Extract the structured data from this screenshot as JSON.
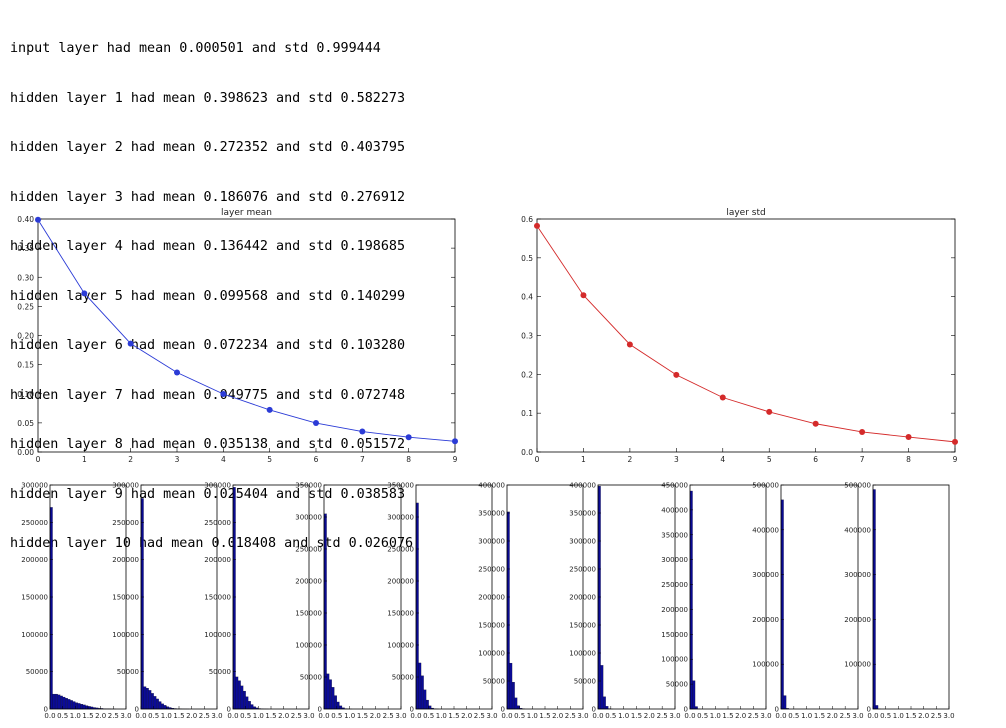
{
  "log_lines": [
    "input layer had mean 0.000501 and std 0.999444",
    "hidden layer 1 had mean 0.398623 and std 0.582273",
    "hidden layer 2 had mean 0.272352 and std 0.403795",
    "hidden layer 3 had mean 0.186076 and std 0.276912",
    "hidden layer 4 had mean 0.136442 and std 0.198685",
    "hidden layer 5 had mean 0.099568 and std 0.140299",
    "hidden layer 6 had mean 0.072234 and std 0.103280",
    "hidden layer 7 had mean 0.049775 and std 0.072748",
    "hidden layer 8 had mean 0.035138 and std 0.051572",
    "hidden layer 9 had mean 0.025404 and std 0.038583",
    "hidden layer 10 had mean 0.018408 and std 0.026076"
  ],
  "chart_data": [
    {
      "type": "line",
      "title": "layer mean",
      "color": "#2b3bd6",
      "x": [
        0,
        1,
        2,
        3,
        4,
        5,
        6,
        7,
        8,
        9
      ],
      "y": [
        0.398623,
        0.272352,
        0.186076,
        0.136442,
        0.099568,
        0.072234,
        0.049775,
        0.035138,
        0.025404,
        0.018408
      ],
      "xlim": [
        0,
        9
      ],
      "ylim": [
        0,
        0.4
      ],
      "xticks": [
        "0",
        "1",
        "2",
        "3",
        "4",
        "5",
        "6",
        "7",
        "8",
        "9"
      ],
      "yticks": [
        "0.00",
        "0.05",
        "0.10",
        "0.15",
        "0.20",
        "0.25",
        "0.30",
        "0.35",
        "0.40"
      ],
      "ytick_values": [
        0,
        0.05,
        0.1,
        0.15,
        0.2,
        0.25,
        0.3,
        0.35,
        0.4
      ]
    },
    {
      "type": "line",
      "title": "layer std",
      "color": "#d42a2a",
      "x": [
        0,
        1,
        2,
        3,
        4,
        5,
        6,
        7,
        8,
        9
      ],
      "y": [
        0.582273,
        0.403795,
        0.276912,
        0.198685,
        0.140299,
        0.10328,
        0.072748,
        0.051572,
        0.038583,
        0.026076
      ],
      "xlim": [
        0,
        9
      ],
      "ylim": [
        0,
        0.6
      ],
      "xticks": [
        "0",
        "1",
        "2",
        "3",
        "4",
        "5",
        "6",
        "7",
        "8",
        "9"
      ],
      "yticks": [
        "0.0",
        "0.1",
        "0.2",
        "0.3",
        "0.4",
        "0.5",
        "0.6"
      ],
      "ytick_values": [
        0,
        0.1,
        0.2,
        0.3,
        0.4,
        0.5,
        0.6
      ]
    }
  ],
  "histograms": {
    "type": "bar",
    "color": "#0b0b96",
    "xticks": [
      "0.0",
      "0.5",
      "1.0",
      "1.5",
      "2.0",
      "2.5",
      "3.0"
    ],
    "xtick_values": [
      0,
      0.5,
      1.0,
      1.5,
      2.0,
      2.5,
      3.0
    ],
    "xlim": [
      0,
      3.0
    ],
    "bin_width": 0.1,
    "panels": [
      {
        "ylim": [
          0,
          300000
        ],
        "yticks": [
          "50000",
          "100000",
          "150000",
          "200000",
          "250000",
          "300000"
        ],
        "ytick_values": [
          50000,
          100000,
          150000,
          200000,
          250000,
          300000
        ],
        "values": [
          270000,
          20000,
          20000,
          19000,
          17500,
          16000,
          14500,
          13000,
          11500,
          10000,
          8500,
          7500,
          6500,
          5500,
          4500,
          3500,
          2800,
          2000,
          1500,
          1000,
          800,
          500,
          300,
          200,
          100,
          50,
          0,
          0,
          0,
          0
        ]
      },
      {
        "ylim": [
          0,
          300000
        ],
        "yticks": [
          "50000",
          "100000",
          "150000",
          "200000",
          "250000",
          "300000"
        ],
        "ytick_values": [
          50000,
          100000,
          150000,
          200000,
          250000,
          300000
        ],
        "values": [
          282000,
          30000,
          28000,
          25000,
          21000,
          17000,
          13500,
          10000,
          7000,
          5000,
          3200,
          2000,
          1200,
          700,
          400,
          200,
          100,
          50,
          20,
          0,
          0,
          0,
          0,
          0,
          0,
          0,
          0,
          0,
          0,
          0
        ]
      },
      {
        "ylim": [
          0,
          300000
        ],
        "yticks": [
          "50000",
          "100000",
          "150000",
          "200000",
          "250000",
          "300000"
        ],
        "ytick_values": [
          50000,
          100000,
          150000,
          200000,
          250000,
          300000
        ],
        "values": [
          297000,
          43000,
          38000,
          31000,
          24000,
          16500,
          10500,
          6000,
          3200,
          1500,
          700,
          300,
          100,
          50,
          0,
          0,
          0,
          0,
          0,
          0,
          0,
          0,
          0,
          0,
          0,
          0,
          0,
          0,
          0,
          0
        ]
      },
      {
        "ylim": [
          0,
          350000
        ],
        "yticks": [
          "50000",
          "100000",
          "150000",
          "200000",
          "250000",
          "300000",
          "350000"
        ],
        "ytick_values": [
          50000,
          100000,
          150000,
          200000,
          250000,
          300000,
          350000
        ],
        "values": [
          305000,
          55000,
          46000,
          34000,
          21000,
          11000,
          5000,
          2000,
          700,
          200,
          50,
          0,
          0,
          0,
          0,
          0,
          0,
          0,
          0,
          0,
          0,
          0,
          0,
          0,
          0,
          0,
          0,
          0,
          0,
          0
        ]
      },
      {
        "ylim": [
          0,
          350000
        ],
        "yticks": [
          "50000",
          "100000",
          "150000",
          "200000",
          "250000",
          "300000",
          "350000"
        ],
        "ytick_values": [
          50000,
          100000,
          150000,
          200000,
          250000,
          300000,
          350000
        ],
        "values": [
          322000,
          72000,
          52000,
          30000,
          14000,
          5000,
          1500,
          400,
          100,
          0,
          0,
          0,
          0,
          0,
          0,
          0,
          0,
          0,
          0,
          0,
          0,
          0,
          0,
          0,
          0,
          0,
          0,
          0,
          0,
          0
        ]
      },
      {
        "ylim": [
          0,
          400000
        ],
        "yticks": [
          "50000",
          "100000",
          "150000",
          "200000",
          "250000",
          "300000",
          "350000",
          "400000"
        ],
        "ytick_values": [
          50000,
          100000,
          150000,
          200000,
          250000,
          300000,
          350000,
          400000
        ],
        "values": [
          352000,
          82000,
          48000,
          20000,
          6000,
          1500,
          300,
          0,
          0,
          0,
          0,
          0,
          0,
          0,
          0,
          0,
          0,
          0,
          0,
          0,
          0,
          0,
          0,
          0,
          0,
          0,
          0,
          0,
          0,
          0
        ]
      },
      {
        "ylim": [
          0,
          400000
        ],
        "yticks": [
          "50000",
          "100000",
          "150000",
          "200000",
          "250000",
          "300000",
          "350000",
          "400000"
        ],
        "ytick_values": [
          50000,
          100000,
          150000,
          200000,
          250000,
          300000,
          350000,
          400000
        ],
        "values": [
          398000,
          78000,
          22000,
          5000,
          800,
          100,
          0,
          0,
          0,
          0,
          0,
          0,
          0,
          0,
          0,
          0,
          0,
          0,
          0,
          0,
          0,
          0,
          0,
          0,
          0,
          0,
          0,
          0,
          0,
          0
        ]
      },
      {
        "ylim": [
          0,
          450000
        ],
        "yticks": [
          "50000",
          "100000",
          "150000",
          "200000",
          "250000",
          "300000",
          "350000",
          "400000",
          "450000"
        ],
        "ytick_values": [
          50000,
          100000,
          150000,
          200000,
          250000,
          300000,
          350000,
          400000,
          450000
        ],
        "values": [
          438000,
          57000,
          5000,
          500,
          0,
          0,
          0,
          0,
          0,
          0,
          0,
          0,
          0,
          0,
          0,
          0,
          0,
          0,
          0,
          0,
          0,
          0,
          0,
          0,
          0,
          0,
          0,
          0,
          0,
          0
        ]
      },
      {
        "ylim": [
          0,
          500000
        ],
        "yticks": [
          "100000",
          "200000",
          "300000",
          "400000",
          "500000"
        ],
        "ytick_values": [
          100000,
          200000,
          300000,
          400000,
          500000
        ],
        "values": [
          467000,
          30000,
          1500,
          0,
          0,
          0,
          0,
          0,
          0,
          0,
          0,
          0,
          0,
          0,
          0,
          0,
          0,
          0,
          0,
          0,
          0,
          0,
          0,
          0,
          0,
          0,
          0,
          0,
          0,
          0
        ]
      },
      {
        "ylim": [
          0,
          500000
        ],
        "yticks": [
          "100000",
          "200000",
          "300000",
          "400000",
          "500000"
        ],
        "ytick_values": [
          100000,
          200000,
          300000,
          400000,
          500000
        ],
        "values": [
          490000,
          8000,
          200,
          0,
          0,
          0,
          0,
          0,
          0,
          0,
          0,
          0,
          0,
          0,
          0,
          0,
          0,
          0,
          0,
          0,
          0,
          0,
          0,
          0,
          0,
          0,
          0,
          0,
          0,
          0
        ]
      }
    ]
  }
}
